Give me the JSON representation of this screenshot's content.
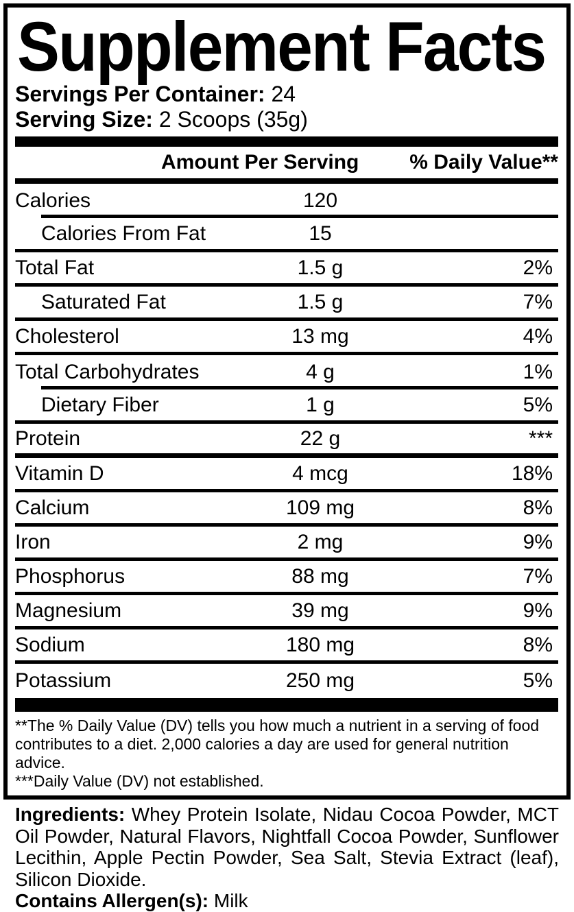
{
  "label": {
    "title": "Supplement Facts",
    "servings_per_container_label": "Servings Per Container:",
    "servings_per_container_value": "24",
    "serving_size_label": "Serving Size:",
    "serving_size_value": "2 Scoops (35g)"
  },
  "table": {
    "col_amount": "Amount Per Serving",
    "col_dv": "% Daily Value**",
    "rows": [
      {
        "name": "Calories",
        "amount": "120",
        "dv": "",
        "indent": false,
        "sep": "indent"
      },
      {
        "name": "Calories From Fat",
        "amount": "15",
        "dv": "",
        "indent": true,
        "sep": "full"
      },
      {
        "name": "Total Fat",
        "amount": "1.5 g",
        "dv": "2%",
        "indent": false,
        "sep": "full"
      },
      {
        "name": "Saturated Fat",
        "amount": "1.5 g",
        "dv": "7%",
        "indent": true,
        "sep": "full"
      },
      {
        "name": "Cholesterol",
        "amount": "13 mg",
        "dv": "4%",
        "indent": false,
        "sep": "full"
      },
      {
        "name": "Total Carbohydrates",
        "amount": "4 g",
        "dv": "1%",
        "indent": false,
        "sep": "indent"
      },
      {
        "name": "Dietary Fiber",
        "amount": "1 g",
        "dv": "5%",
        "indent": true,
        "sep": "full"
      },
      {
        "name": "Protein",
        "amount": "22 g",
        "dv": "***",
        "indent": false,
        "sep": "thick"
      },
      {
        "name": "Vitamin D",
        "amount": "4 mcg",
        "dv": "18%",
        "indent": false,
        "sep": "full"
      },
      {
        "name": "Calcium",
        "amount": "109 mg",
        "dv": "8%",
        "indent": false,
        "sep": "full"
      },
      {
        "name": "Iron",
        "amount": "2 mg",
        "dv": "9%",
        "indent": false,
        "sep": "full"
      },
      {
        "name": "Phosphorus",
        "amount": "88 mg",
        "dv": "7%",
        "indent": false,
        "sep": "full"
      },
      {
        "name": "Magnesium",
        "amount": "39 mg",
        "dv": "9%",
        "indent": false,
        "sep": "full"
      },
      {
        "name": "Sodium",
        "amount": "180 mg",
        "dv": "8%",
        "indent": false,
        "sep": "full"
      },
      {
        "name": "Potassium",
        "amount": "250 mg",
        "dv": "5%",
        "indent": false,
        "sep": "none"
      }
    ]
  },
  "footnotes": {
    "dv_note": "**The % Daily Value (DV) tells you how much a nutrient in a serving of food contributes to a diet. 2,000 calories a day are used for general nutrition advice.",
    "not_established_note": "***Daily Value (DV) not established."
  },
  "ingredients": {
    "label": "Ingredients:",
    "list": "Whey Protein Isolate, Nidau Cocoa Powder, MCT Oil Powder, Natural Flavors, Nightfall Cocoa Powder, Sunflower Lecithin, Apple Pectin Powder, Sea Salt, Stevia Extract (leaf), Silicon Dioxide.",
    "allergen_label": "Contains Allergen(s):",
    "allergen_value": "Milk"
  },
  "colors": {
    "text": "#000000",
    "background": "#ffffff"
  }
}
